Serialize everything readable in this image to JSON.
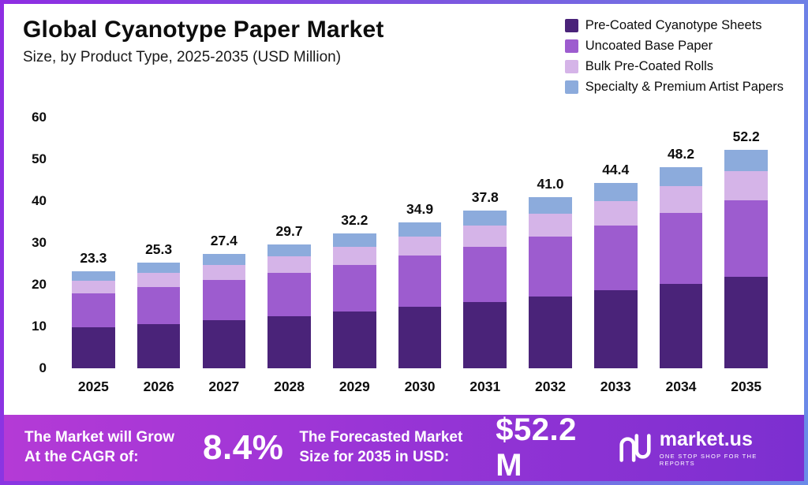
{
  "header": {
    "title": "Global Cyanotype Paper Market",
    "subtitle": "Size, by Product Type, 2025-2035 (USD Million)"
  },
  "chart_data": {
    "type": "bar",
    "stacked": true,
    "title": "Global Cyanotype Paper Market Size, by Product Type, 2025-2035 (USD Million)",
    "categories": [
      "2025",
      "2026",
      "2027",
      "2028",
      "2029",
      "2030",
      "2031",
      "2032",
      "2033",
      "2034",
      "2035"
    ],
    "totals": [
      23.3,
      25.3,
      27.4,
      29.7,
      32.2,
      34.9,
      37.8,
      41.0,
      44.4,
      48.2,
      52.2
    ],
    "series": [
      {
        "name": "Pre-Coated Cyanotype Sheets",
        "color": "#4A2379",
        "values": [
          9.8,
          10.6,
          11.5,
          12.5,
          13.5,
          14.7,
          15.9,
          17.2,
          18.6,
          20.2,
          21.9
        ]
      },
      {
        "name": "Uncoated Base Paper",
        "color": "#9D5CCF",
        "values": [
          8.2,
          8.9,
          9.6,
          10.4,
          11.3,
          12.2,
          13.2,
          14.4,
          15.5,
          16.9,
          18.3
        ]
      },
      {
        "name": "Bulk Pre-Coated Rolls",
        "color": "#D5B4E8",
        "values": [
          3.0,
          3.3,
          3.6,
          3.9,
          4.2,
          4.6,
          5.0,
          5.4,
          5.9,
          6.4,
          6.9
        ]
      },
      {
        "name": "Specialty & Premium Artist Papers",
        "color": "#8CABDC",
        "values": [
          2.3,
          2.5,
          2.7,
          2.9,
          3.2,
          3.4,
          3.7,
          4.0,
          4.4,
          4.7,
          5.1
        ]
      }
    ],
    "xlabel": "",
    "ylabel": "",
    "ylim": [
      0,
      60
    ],
    "yticks": [
      0,
      10,
      20,
      30,
      40,
      50,
      60
    ],
    "grid": false,
    "legend_position": "top-right"
  },
  "banner": {
    "cagr_label": "The Market will Grow At the CAGR of:",
    "cagr_value": "8.4%",
    "forecast_label": "The Forecasted Market Size for 2035 in USD:",
    "forecast_value": "$52.2 M",
    "brand": "market.us",
    "brand_tagline": "One Stop Shop For The Reports"
  }
}
